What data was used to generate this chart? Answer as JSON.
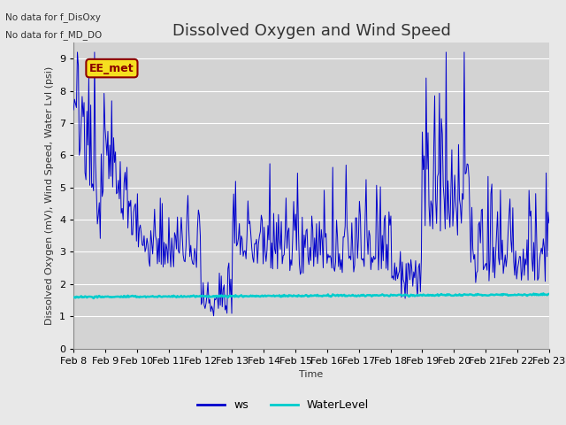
{
  "title": "Dissolved Oxygen and Wind Speed",
  "ylabel": "Dissolved Oxygen (mV), Wind Speed, Water Lvl (psi)",
  "xlabel": "Time",
  "text_no_data_1": "No data for f_DisOxy",
  "text_no_data_2": "No data for f_MD_DO",
  "annotation_label": "EE_met",
  "ylim": [
    0.0,
    9.5
  ],
  "yticks": [
    0.0,
    1.0,
    2.0,
    3.0,
    4.0,
    5.0,
    6.0,
    7.0,
    8.0,
    9.0
  ],
  "legend_labels": [
    "ws",
    "WaterLevel"
  ],
  "ws_color": "#0000cc",
  "water_color": "#00cccc",
  "fig_bg_color": "#e8e8e8",
  "plot_bg_color": "#d3d3d3",
  "grid_color": "#ffffff",
  "title_fontsize": 13,
  "axis_fontsize": 8,
  "tick_fontsize": 8
}
